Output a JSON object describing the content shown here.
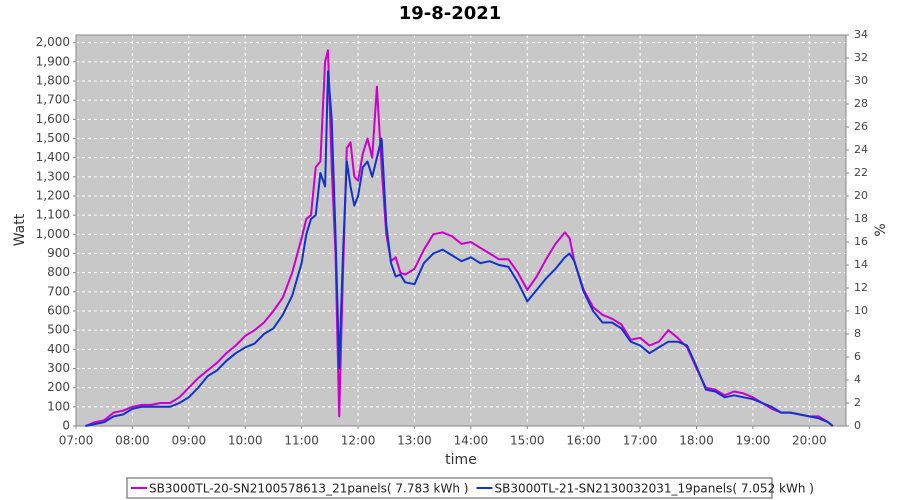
{
  "chart_data": {
    "type": "line",
    "title": "19-8-2021",
    "x_label": "time",
    "y_label": "Watt",
    "y2_label": "%",
    "x": [
      "07:10",
      "07:20",
      "07:30",
      "07:40",
      "07:50",
      "08:00",
      "08:10",
      "08:20",
      "08:30",
      "08:40",
      "08:50",
      "09:00",
      "09:10",
      "09:20",
      "09:30",
      "09:40",
      "09:50",
      "10:00",
      "10:10",
      "10:20",
      "10:30",
      "10:40",
      "10:50",
      "11:00",
      "11:05",
      "11:10",
      "11:15",
      "11:20",
      "11:25",
      "11:28",
      "11:32",
      "11:36",
      "11:40",
      "11:44",
      "11:48",
      "11:52",
      "11:56",
      "12:00",
      "12:05",
      "12:10",
      "12:15",
      "12:20",
      "12:25",
      "12:30",
      "12:35",
      "12:40",
      "12:45",
      "12:50",
      "13:00",
      "13:10",
      "13:20",
      "13:30",
      "13:40",
      "13:50",
      "14:00",
      "14:10",
      "14:20",
      "14:30",
      "14:40",
      "14:50",
      "15:00",
      "15:10",
      "15:20",
      "15:30",
      "15:40",
      "15:45",
      "15:50",
      "16:00",
      "16:10",
      "16:20",
      "16:30",
      "16:40",
      "16:50",
      "17:00",
      "17:10",
      "17:20",
      "17:30",
      "17:40",
      "17:50",
      "18:00",
      "18:10",
      "18:20",
      "18:30",
      "18:40",
      "18:50",
      "19:00",
      "19:10",
      "19:20",
      "19:30",
      "19:40",
      "19:50",
      "20:00",
      "20:10",
      "20:20",
      "20:25"
    ],
    "series": [
      {
        "name": "SB3000TL-20-SN2100578613_21panels( 7.783 kWh )",
        "color": "#cc00cc",
        "values": [
          0,
          20,
          30,
          70,
          80,
          100,
          110,
          110,
          120,
          120,
          150,
          200,
          250,
          290,
          330,
          380,
          420,
          470,
          500,
          540,
          600,
          670,
          800,
          980,
          1080,
          1100,
          1350,
          1380,
          1900,
          1960,
          1350,
          900,
          50,
          800,
          1450,
          1480,
          1300,
          1280,
          1420,
          1500,
          1400,
          1770,
          1350,
          1000,
          860,
          880,
          800,
          790,
          820,
          920,
          1000,
          1010,
          990,
          950,
          960,
          930,
          900,
          870,
          870,
          800,
          710,
          780,
          870,
          950,
          1010,
          980,
          860,
          710,
          620,
          580,
          560,
          530,
          450,
          460,
          420,
          440,
          500,
          460,
          410,
          300,
          200,
          190,
          160,
          180,
          170,
          150,
          120,
          90,
          70,
          70,
          60,
          50,
          50,
          20,
          0
        ]
      },
      {
        "name": "SB3000TL-21-SN2130032031_19panels( 7.052 kWh )",
        "color": "#1133cc",
        "values": [
          0,
          10,
          20,
          50,
          60,
          90,
          100,
          100,
          100,
          100,
          120,
          150,
          200,
          260,
          290,
          340,
          380,
          410,
          430,
          480,
          510,
          580,
          680,
          850,
          1000,
          1080,
          1100,
          1320,
          1250,
          1850,
          1600,
          1000,
          300,
          900,
          1380,
          1250,
          1150,
          1200,
          1350,
          1380,
          1300,
          1400,
          1500,
          1050,
          850,
          780,
          790,
          750,
          740,
          850,
          900,
          920,
          890,
          860,
          880,
          850,
          860,
          840,
          830,
          750,
          650,
          710,
          770,
          820,
          880,
          900,
          860,
          700,
          600,
          540,
          540,
          510,
          440,
          420,
          380,
          410,
          440,
          440,
          420,
          310,
          190,
          180,
          150,
          160,
          150,
          140,
          120,
          100,
          70,
          70,
          60,
          50,
          40,
          20,
          0
        ]
      }
    ],
    "xlim": [
      "07:00",
      "20:39"
    ],
    "xticks": [
      "07:00",
      "08:00",
      "09:00",
      "10:00",
      "11:00",
      "12:00",
      "13:00",
      "14:00",
      "15:00",
      "16:00",
      "17:00",
      "18:00",
      "19:00",
      "20:00"
    ],
    "ylim": [
      0,
      2040
    ],
    "yticks": [
      0,
      100,
      200,
      300,
      400,
      500,
      600,
      700,
      800,
      900,
      {
        "value": 1000,
        "label": "1,000"
      },
      {
        "value": 1100,
        "label": "1,100"
      },
      {
        "value": 1200,
        "label": "1,200"
      },
      {
        "value": 1300,
        "label": "1,300"
      },
      {
        "value": 1400,
        "label": "1,400"
      },
      {
        "value": 1500,
        "label": "1,500"
      },
      {
        "value": 1600,
        "label": "1,600"
      },
      {
        "value": 1700,
        "label": "1,700"
      },
      {
        "value": 1800,
        "label": "1,800"
      },
      {
        "value": 1900,
        "label": "1,900"
      },
      {
        "value": 2000,
        "label": "2,000"
      }
    ],
    "y2lim": [
      0,
      34
    ],
    "y2ticks": [
      0,
      2,
      4,
      6,
      8,
      10,
      12,
      14,
      16,
      18,
      20,
      22,
      24,
      26,
      28,
      30,
      32,
      34
    ],
    "grid": true,
    "legend": "bottom"
  }
}
